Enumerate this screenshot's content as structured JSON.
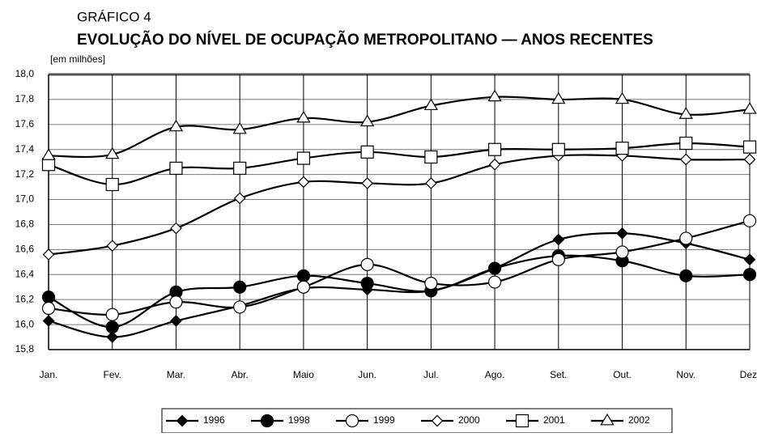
{
  "chart_data": {
    "type": "line",
    "kicker": "GRÁFICO 4",
    "title": "EVOLUÇÃO DO NÍVEL DE OCUPAÇÃO METROPOLITANO — ANOS RECENTES",
    "y_unit_label": "[em milhões]",
    "categories": [
      "Jan.",
      "Fev.",
      "Mar.",
      "Abr.",
      "Maio",
      "Jun.",
      "Jul.",
      "Ago.",
      "Set.",
      "Out.",
      "Nov.",
      "Dez."
    ],
    "ylim": [
      15.8,
      18.0
    ],
    "yticks": [
      {
        "value": 15.8,
        "label": "15,8"
      },
      {
        "value": 16.0,
        "label": "16,0"
      },
      {
        "value": 16.2,
        "label": "16,2"
      },
      {
        "value": 16.4,
        "label": "16,4"
      },
      {
        "value": 16.6,
        "label": "16,6"
      },
      {
        "value": 16.8,
        "label": "16,8"
      },
      {
        "value": 17.0,
        "label": "17,0"
      },
      {
        "value": 17.2,
        "label": "17,2"
      },
      {
        "value": 17.4,
        "label": "17,4"
      },
      {
        "value": 17.6,
        "label": "17,6"
      },
      {
        "value": 17.8,
        "label": "17,8"
      },
      {
        "value": 18.0,
        "label": "18,0"
      }
    ],
    "grid": true,
    "legend": "bottom",
    "series": [
      {
        "name": "1996",
        "color": "#000000",
        "marker": "diamond-filled",
        "values": [
          16.03,
          15.9,
          16.03,
          16.15,
          16.29,
          16.28,
          16.27,
          16.45,
          16.68,
          16.73,
          16.65,
          16.52
        ]
      },
      {
        "name": "1998",
        "color": "#000000",
        "marker": "circle-filled",
        "values": [
          16.22,
          15.98,
          16.26,
          16.3,
          16.39,
          16.33,
          16.27,
          16.45,
          16.55,
          16.51,
          16.39,
          16.4
        ]
      },
      {
        "name": "1999",
        "color": "#000000",
        "marker": "circle-open",
        "values": [
          16.13,
          16.08,
          16.18,
          16.14,
          16.3,
          16.48,
          16.33,
          16.34,
          16.52,
          16.58,
          16.69,
          16.83
        ]
      },
      {
        "name": "2000",
        "color": "#000000",
        "marker": "diamond-open",
        "values": [
          16.56,
          16.63,
          16.77,
          17.01,
          17.14,
          17.13,
          17.13,
          17.28,
          17.35,
          17.35,
          17.32,
          17.32
        ]
      },
      {
        "name": "2001",
        "color": "#000000",
        "marker": "square-open",
        "values": [
          17.28,
          17.12,
          17.25,
          17.25,
          17.33,
          17.38,
          17.34,
          17.4,
          17.4,
          17.41,
          17.45,
          17.42
        ]
      },
      {
        "name": "2002",
        "color": "#000000",
        "marker": "triangle-open",
        "values": [
          17.35,
          17.36,
          17.58,
          17.56,
          17.65,
          17.62,
          17.75,
          17.82,
          17.8,
          17.8,
          17.68,
          17.72
        ]
      }
    ]
  }
}
